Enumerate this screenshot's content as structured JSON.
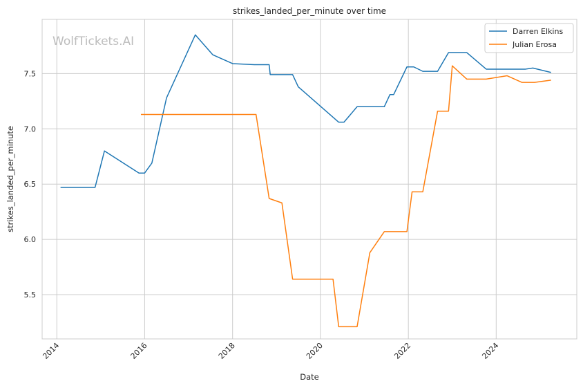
{
  "chart_data": {
    "type": "line",
    "title": "strikes_landed_per_minute over time",
    "xlabel": "Date",
    "ylabel": "strikes_landed_per_minute",
    "watermark": "WolfTickets.AI",
    "x_axis": {
      "type": "date",
      "range": [
        "2013-09-01",
        "2025-11-01"
      ],
      "ticks": [
        "2014",
        "2016",
        "2018",
        "2020",
        "2022",
        "2024"
      ]
    },
    "y_axis": {
      "range": [
        5.1,
        7.99
      ],
      "ticks": [
        "5.5",
        "6.0",
        "6.5",
        "7.0",
        "7.5"
      ]
    },
    "grid": true,
    "legend": {
      "position": "top-right"
    },
    "series": [
      {
        "name": "Darren Elkins",
        "color": "#1f77b4",
        "points": [
          [
            "2014-02-01",
            6.47
          ],
          [
            "2014-11-15",
            6.47
          ],
          [
            "2015-02-01",
            6.8
          ],
          [
            "2015-11-15",
            6.6
          ],
          [
            "2016-01-01",
            6.6
          ],
          [
            "2016-03-01",
            6.69
          ],
          [
            "2016-07-01",
            7.28
          ],
          [
            "2017-02-25",
            7.85
          ],
          [
            "2017-07-20",
            7.67
          ],
          [
            "2018-01-01",
            7.59
          ],
          [
            "2018-07-01",
            7.58
          ],
          [
            "2018-11-01",
            7.58
          ],
          [
            "2018-11-10",
            7.49
          ],
          [
            "2019-05-15",
            7.49
          ],
          [
            "2019-07-01",
            7.38
          ],
          [
            "2020-06-01",
            7.06
          ],
          [
            "2020-07-15",
            7.06
          ],
          [
            "2020-11-01",
            7.2
          ],
          [
            "2021-06-15",
            7.2
          ],
          [
            "2021-08-01",
            7.31
          ],
          [
            "2021-09-01",
            7.31
          ],
          [
            "2021-12-20",
            7.56
          ],
          [
            "2022-02-15",
            7.56
          ],
          [
            "2022-05-01",
            7.52
          ],
          [
            "2022-09-01",
            7.52
          ],
          [
            "2022-12-01",
            7.69
          ],
          [
            "2023-05-01",
            7.69
          ],
          [
            "2023-10-10",
            7.54
          ],
          [
            "2024-09-01",
            7.54
          ],
          [
            "2024-11-01",
            7.55
          ],
          [
            "2025-04-01",
            7.51
          ]
        ]
      },
      {
        "name": "Julian Erosa",
        "color": "#ff7f0e",
        "points": [
          [
            "2015-12-01",
            7.13
          ],
          [
            "2018-07-15",
            7.13
          ],
          [
            "2018-11-01",
            6.37
          ],
          [
            "2019-02-15",
            6.33
          ],
          [
            "2019-05-15",
            5.64
          ],
          [
            "2020-04-15",
            5.64
          ],
          [
            "2020-06-01",
            5.21
          ],
          [
            "2020-11-01",
            5.21
          ],
          [
            "2021-02-15",
            5.88
          ],
          [
            "2021-06-15",
            6.07
          ],
          [
            "2021-12-20",
            6.07
          ],
          [
            "2022-02-01",
            6.43
          ],
          [
            "2022-05-01",
            6.43
          ],
          [
            "2022-09-01",
            7.16
          ],
          [
            "2022-12-01",
            7.16
          ],
          [
            "2023-01-01",
            7.57
          ],
          [
            "2023-05-01",
            7.45
          ],
          [
            "2023-10-10",
            7.45
          ],
          [
            "2024-04-01",
            7.48
          ],
          [
            "2024-08-01",
            7.42
          ],
          [
            "2024-11-15",
            7.42
          ],
          [
            "2025-04-01",
            7.44
          ]
        ]
      }
    ]
  }
}
